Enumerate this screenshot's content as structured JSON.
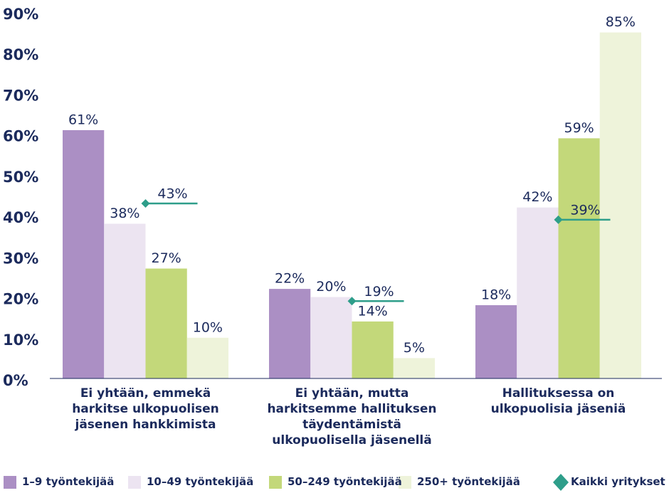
{
  "chart_data": {
    "type": "bar",
    "categories": [
      "Ei yhtään, emmekä\nharkitse ulkopuolisen\njäsenen hankkimista",
      "Ei yhtään, mutta\nharkitsemme hallituksen\ntäydentämistä\nulkopuolisella jäsenellä",
      "Hallituksessa on\nulkopuolisia jäseniä"
    ],
    "series": [
      {
        "name": "1–9 työntekijää",
        "color": "#ab8fc4",
        "values": [
          61,
          22,
          18
        ],
        "value_labels": [
          "61%",
          "22%",
          "18%"
        ]
      },
      {
        "name": "10–49 työntekijää",
        "color": "#ece4f1",
        "values": [
          38,
          20,
          42
        ],
        "value_labels": [
          "38%",
          "20%",
          "42%"
        ]
      },
      {
        "name": "50–249 työntekijää",
        "color": "#c3d87a",
        "values": [
          27,
          14,
          59
        ],
        "value_labels": [
          "27%",
          "14%",
          "59%"
        ]
      },
      {
        "name": "250+ työntekijää",
        "color": "#eef3da",
        "values": [
          10,
          5,
          85
        ],
        "value_labels": [
          "10%",
          "5%",
          "85%"
        ]
      }
    ],
    "markers": {
      "name": "Kaikki yritykset",
      "color": "#2e9e8a",
      "values": [
        43,
        19,
        39
      ],
      "value_labels": [
        "43%",
        "19%",
        "39%"
      ]
    },
    "ylim": [
      0,
      90
    ],
    "yticks": [
      {
        "value": 0,
        "label": "0%"
      },
      {
        "value": 10,
        "label": "10%"
      },
      {
        "value": 20,
        "label": "20%"
      },
      {
        "value": 30,
        "label": "30%"
      },
      {
        "value": 40,
        "label": "40%"
      },
      {
        "value": 50,
        "label": "50%"
      },
      {
        "value": 60,
        "label": "60%"
      },
      {
        "value": 70,
        "label": "70%"
      },
      {
        "value": 80,
        "label": "80%"
      },
      {
        "value": 90,
        "label": "90%"
      }
    ],
    "grid": false
  }
}
